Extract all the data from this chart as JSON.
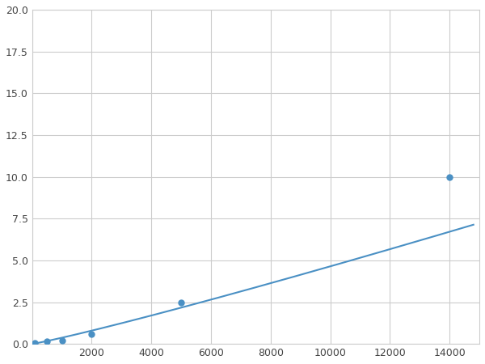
{
  "x": [
    100,
    500,
    1000,
    2000,
    5000,
    14000
  ],
  "y": [
    0.05,
    0.15,
    0.2,
    0.6,
    2.5,
    10.0
  ],
  "line_color": "#4a90c4",
  "marker_color": "#4a90c4",
  "marker_size": 5,
  "xlim": [
    0,
    15000
  ],
  "ylim": [
    0,
    20.0
  ],
  "xticks": [
    0,
    2000,
    4000,
    6000,
    8000,
    10000,
    12000,
    14000
  ],
  "yticks": [
    0.0,
    2.5,
    5.0,
    7.5,
    10.0,
    12.5,
    15.0,
    17.5,
    20.0
  ],
  "grid_color": "#cccccc",
  "background_color": "#ffffff",
  "linewidth": 1.5
}
